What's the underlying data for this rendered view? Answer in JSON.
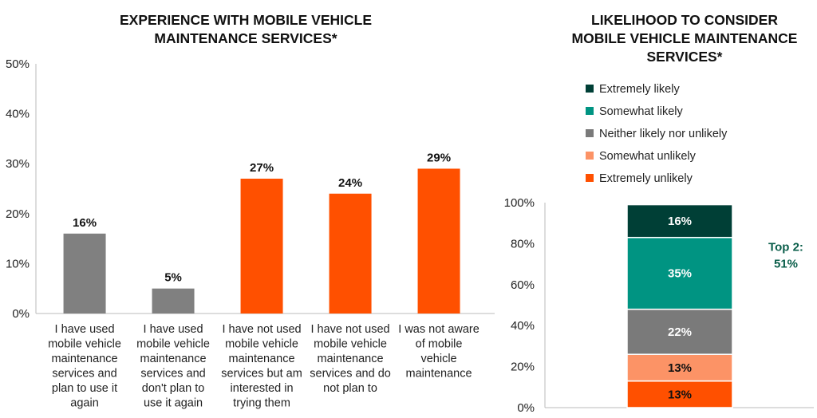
{
  "chart_data": [
    {
      "type": "bar",
      "title": [
        "EXPERIENCE WITH MOBILE VEHICLE",
        "MAINTENANCE SERVICES*"
      ],
      "categories": [
        [
          "I have used",
          "mobile vehicle",
          "maintenance",
          "services and",
          "plan to use it",
          "again"
        ],
        [
          "I have used",
          "mobile vehicle",
          "maintenance",
          "services and",
          "don't plan to",
          "use it again"
        ],
        [
          "I have not used",
          "mobile vehicle",
          "maintenance",
          "services but am",
          "interested in",
          "trying them"
        ],
        [
          "I have not used",
          "mobile vehicle",
          "maintenance",
          "services and do",
          "not plan to"
        ],
        [
          "I was not aware",
          "of mobile",
          "vehicle",
          "maintenance"
        ]
      ],
      "values": [
        16,
        5,
        27,
        24,
        29
      ],
      "value_labels": [
        "16%",
        "5%",
        "27%",
        "24%",
        "29%"
      ],
      "colors": [
        "#808080",
        "#808080",
        "#ff5000",
        "#ff5000",
        "#ff5000"
      ],
      "ylim": [
        0,
        50
      ],
      "yticks": [
        "0%",
        "10%",
        "20%",
        "30%",
        "40%",
        "50%"
      ],
      "xlabel": "",
      "ylabel": "",
      "grid": false
    },
    {
      "type": "bar",
      "stacked": true,
      "title": [
        "LIKELIHOOD TO CONSIDER",
        "MOBILE  VEHICLE MAINTENANCE",
        "SERVICES*"
      ],
      "series": [
        {
          "name": "Extremely unlikely",
          "values": [
            13
          ],
          "label": "13%",
          "color": "#ff5000",
          "text_color": "#111"
        },
        {
          "name": "Somewhat unlikely",
          "values": [
            13
          ],
          "label": "13%",
          "color": "#fc9366",
          "text_color": "#111"
        },
        {
          "name": "Neither likely nor unlikely",
          "values": [
            22
          ],
          "label": "22%",
          "color": "#7a7a7a",
          "text_color": "#fff"
        },
        {
          "name": "Somewhat likely",
          "values": [
            35
          ],
          "label": "35%",
          "color": "#009482",
          "text_color": "#fff"
        },
        {
          "name": "Extremely likely",
          "values": [
            16
          ],
          "label": "16%",
          "color": "#003f36",
          "text_color": "#fff"
        }
      ],
      "legend_order": [
        "Extremely likely",
        "Somewhat likely",
        "Neither likely nor unlikely",
        "Somewhat unlikely",
        "Extremely unlikely"
      ],
      "legend_placement": "top",
      "ylim": [
        0,
        100
      ],
      "yticks": [
        "0%",
        "20%",
        "40%",
        "60%",
        "80%",
        "100%"
      ],
      "annotation": {
        "lines": [
          "Top 2:",
          "51%"
        ],
        "color": "#0a5e4a"
      },
      "grid": false
    }
  ]
}
